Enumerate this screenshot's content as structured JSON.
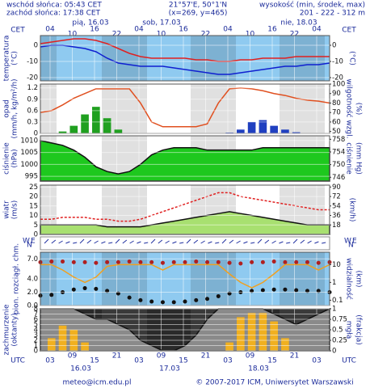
{
  "header": {
    "sunrise": "wschód słońca: 05:43 CET",
    "sunset": "zachód słońca: 17:38 CET",
    "coords": "21°57'E, 50°1'N",
    "grid": "(x=269, y=465)",
    "elevation_title": "wysokość (min, środek, max)",
    "elevation": "201 - 222 - 312 m"
  },
  "time_axis": {
    "top_label": "CET",
    "top_label_right": "CET",
    "top_hours": [
      "04",
      "10",
      "16",
      "22",
      "04",
      "10",
      "16",
      "22",
      "04",
      "10",
      "16",
      "22",
      "04"
    ],
    "days": [
      "pią, 16.03",
      "sob, 17.03",
      "nie, 18.03"
    ],
    "bottom_label": "UTC",
    "bottom_label_right": "UTC",
    "bottom_hours": [
      "03",
      "09",
      "15",
      "21",
      "03",
      "09",
      "15",
      "21",
      "03",
      "09",
      "15",
      "21",
      "03"
    ],
    "dates": [
      "16.03",
      "17.03",
      "18.03"
    ]
  },
  "wind_dir_labels": {
    "left": [
      "W",
      "N",
      "E"
    ],
    "right": [
      "W",
      "N",
      "E"
    ]
  },
  "footer": {
    "email": "meteo@icm.edu.pl",
    "copyright": "© 2007-2017 ICM, Uniwersytet Warszawski"
  },
  "chart_data": [
    {
      "type": "combo",
      "y_label": [
        "temperatura",
        "(°C)"
      ],
      "y2_label": [
        "(°C)"
      ],
      "background": "#8fcaf0",
      "ylim": [
        -22,
        6
      ],
      "yticks": [
        0,
        -10,
        -20
      ],
      "y2lim": [
        -22,
        6
      ],
      "y2ticks": [
        0,
        -10,
        -20
      ],
      "series": [
        {
          "type": "line",
          "color": "#e02020",
          "values": [
            1,
            2,
            3,
            4,
            4,
            3,
            1,
            -2,
            -5,
            -7,
            -8,
            -8,
            -8,
            -8,
            -9,
            -9,
            -10,
            -10,
            -9,
            -9,
            -8,
            -8,
            -8,
            -7,
            -7,
            -7,
            -7
          ]
        },
        {
          "type": "line",
          "color": "#1020d0",
          "values": [
            -1,
            0,
            0,
            -1,
            -2,
            -4,
            -8,
            -11,
            -12,
            -13,
            -13,
            -13,
            -14,
            -15,
            -16,
            -17,
            -18,
            -18,
            -17,
            -16,
            -15,
            -14,
            -13,
            -13,
            -12,
            -12,
            -11
          ]
        }
      ]
    },
    {
      "type": "combo",
      "y_label": [
        "opad",
        "(mm/h, kg/m²/h)"
      ],
      "y2_label": [
        "wilgotność wzgl.",
        "(%)"
      ],
      "background": "#ffffff",
      "ylim": [
        0,
        1.3
      ],
      "yticks": [
        1.2,
        0.9,
        0.6,
        0.3,
        0
      ],
      "y2lim": [
        48,
        100
      ],
      "y2ticks": [
        100,
        90,
        80,
        70,
        60,
        50
      ],
      "series": [
        {
          "type": "bar",
          "colors": [
            "#20a020",
            "#20a020",
            "#20a020",
            "#20a020",
            "#20a020",
            "#20a020",
            "#20a020",
            "#20a020",
            "#20a020",
            "#20a020",
            "#20a020",
            "#20a020",
            "#20a020",
            "#20a020",
            "#2040c0",
            "#2040c0",
            "#2040c0",
            "#2040c0",
            "#2040c0",
            "#2040c0",
            "#2040c0",
            "#2040c0",
            "#2040c0",
            "#2040c0",
            "#2040c0",
            "#2040c0",
            "#2040c0"
          ],
          "values": [
            0,
            0,
            0.05,
            0.2,
            0.5,
            0.7,
            0.4,
            0.1,
            0,
            0,
            0,
            0,
            0,
            0,
            0,
            0,
            0,
            0.02,
            0.1,
            0.3,
            0.35,
            0.2,
            0.1,
            0.03,
            0,
            0,
            0
          ]
        },
        {
          "type": "line",
          "axis": "y2",
          "color": "#e05020",
          "values": [
            70,
            72,
            78,
            85,
            90,
            95,
            95,
            95,
            95,
            80,
            60,
            55,
            55,
            55,
            55,
            58,
            80,
            95,
            96,
            95,
            93,
            90,
            88,
            85,
            83,
            82,
            80
          ]
        }
      ]
    },
    {
      "type": "combo",
      "y_label": [
        "ciśnienie",
        "(hPa)"
      ],
      "y2_label": [
        "ciśnienie",
        "(mm Hg)"
      ],
      "background": "#ffffff",
      "ylim": [
        993,
        1012
      ],
      "yticks": [
        1010,
        1005,
        1000,
        995
      ],
      "y2lim": [
        744.8,
        759.1
      ],
      "y2ticks": [
        758,
        754,
        750,
        746
      ],
      "series": [
        {
          "type": "area",
          "color": "#1ec81e",
          "values": [
            1010,
            1009,
            1008,
            1006,
            1003,
            999,
            997,
            996,
            997,
            1000,
            1004,
            1006,
            1007,
            1007,
            1007,
            1006,
            1006,
            1006,
            1006,
            1006,
            1007,
            1007,
            1007,
            1007,
            1007,
            1007,
            1007
          ]
        }
      ]
    },
    {
      "type": "combo",
      "y_label": [
        "wiatr",
        "(m/s)"
      ],
      "y2_label": [
        "(km/h)"
      ],
      "background": "#ffffff",
      "ylim": [
        0,
        26
      ],
      "yticks": [
        25,
        20,
        15,
        10,
        5,
        0
      ],
      "y2lim": [
        0,
        93.6
      ],
      "y2ticks": [
        90,
        72,
        54,
        36,
        18
      ],
      "series": [
        {
          "type": "area",
          "color": "#a8e070",
          "values": [
            5,
            5,
            5,
            5,
            5,
            5,
            4,
            4,
            4,
            4,
            5,
            6,
            7,
            8,
            9,
            10,
            11,
            12,
            11,
            10,
            9,
            8,
            7,
            6,
            5,
            5,
            5
          ]
        },
        {
          "type": "line",
          "dash": true,
          "color": "#e02020",
          "values": [
            8,
            8,
            9,
            9,
            9,
            8,
            8,
            7,
            7,
            8,
            10,
            12,
            14,
            16,
            18,
            20,
            22,
            22,
            20,
            19,
            18,
            17,
            16,
            15,
            14,
            13,
            13
          ]
        }
      ]
    },
    {
      "type": "combo",
      "y_label": [
        "pion. rozciągł. chm."
      ],
      "y2_label": [
        "widzialność",
        "(km)"
      ],
      "background": "#8fcaf0",
      "ylim": [
        0,
        8
      ],
      "yticks": [
        {
          "value": 7,
          "label": "7.0"
        },
        {
          "value": 4,
          "label": "4.0"
        },
        {
          "value": 2,
          "label": "2.0"
        },
        {
          "value": 0,
          "label": "0.0"
        }
      ],
      "y2log": true,
      "y2lim": [
        0.05,
        50
      ],
      "y2ticks": [
        10,
        1,
        0.1
      ],
      "series": [
        {
          "type": "dots",
          "color": "#b02020",
          "values": [
            6.5,
            6.6,
            6.6,
            6.5,
            6.5,
            6.4,
            6.5,
            6.5,
            6.6,
            6.5,
            6.5,
            6.4,
            6.5,
            6.5,
            6.6,
            6.5,
            6.5,
            6.4,
            6.3,
            6.5,
            6.5,
            6.6,
            6.5,
            6.5,
            6.5,
            6.4,
            6.5
          ]
        },
        {
          "type": "dots",
          "color": "#111111",
          "values": [
            1.5,
            1.6,
            2.0,
            2.4,
            2.6,
            2.5,
            2.2,
            1.8,
            1.2,
            0.8,
            0.6,
            0.5,
            0.5,
            0.6,
            0.8,
            1.0,
            1.4,
            1.8,
            2.0,
            2.2,
            2.3,
            2.4,
            2.4,
            2.3,
            2.2,
            2.2,
            2.0
          ]
        },
        {
          "type": "line",
          "axis": "y2",
          "color": "#f0a020",
          "values": [
            10,
            10,
            5,
            2,
            1,
            2,
            8,
            10,
            10,
            10,
            10,
            5,
            10,
            10,
            10,
            10,
            10,
            3,
            1,
            0.5,
            1,
            3,
            10,
            10,
            10,
            5,
            10
          ]
        }
      ]
    },
    {
      "type": "combo",
      "y_label": [
        "zachmurzenie",
        "(oktanty)"
      ],
      "y2_label": [
        "mgła",
        "(frakcja)"
      ],
      "background": "#2a2a2a",
      "ylim": [
        0,
        8
      ],
      "yticks": [
        8,
        7,
        6,
        5,
        4,
        3,
        2,
        1,
        0
      ],
      "y2lim": [
        0,
        1
      ],
      "y2ticks": [
        1,
        0.75,
        0.5,
        0.25,
        0
      ],
      "series": [
        {
          "type": "area",
          "color": "#8a8a8a",
          "values": [
            8,
            8,
            8,
            8,
            7,
            6,
            6,
            5,
            4,
            2,
            1,
            0,
            0,
            1,
            3,
            6,
            8,
            8,
            8,
            8,
            8,
            7,
            6,
            5,
            6,
            7,
            8
          ]
        },
        {
          "type": "bar",
          "axis": "y2",
          "color": "#f0b020",
          "values": [
            0,
            0.3,
            0.6,
            0.5,
            0.2,
            0,
            0,
            0,
            0,
            0,
            0,
            0,
            0,
            0,
            0,
            0,
            0,
            0.2,
            0.8,
            0.9,
            0.9,
            0.7,
            0.3,
            0,
            0,
            0,
            0
          ]
        }
      ]
    }
  ]
}
